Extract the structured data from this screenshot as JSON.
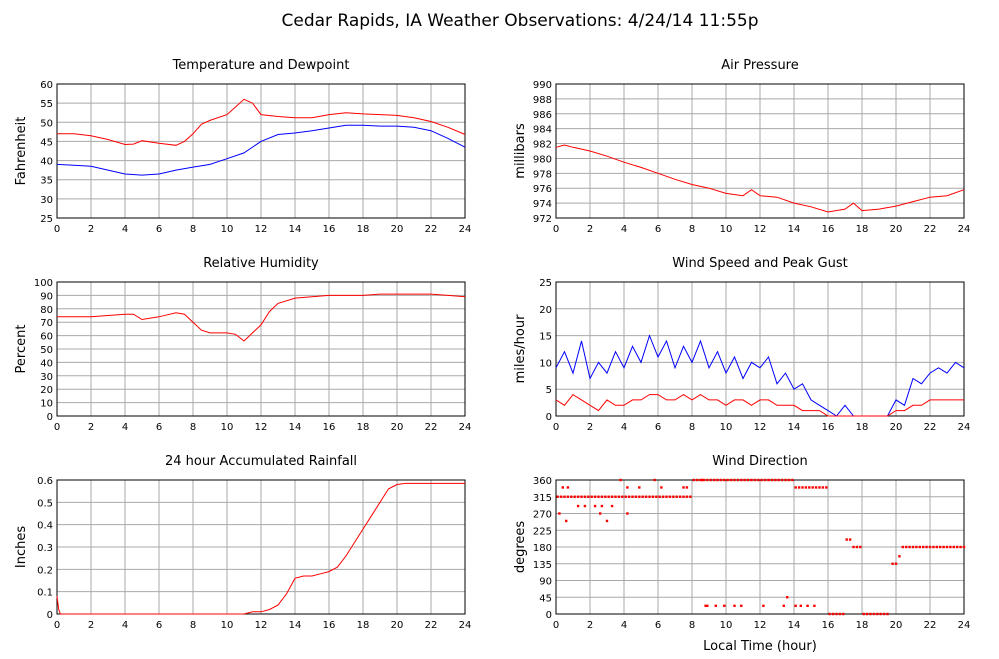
{
  "title": "Cedar Rapids, IA Weather Observations: 4/24/14 11:55p",
  "xlabel_bottom": "Local Time (hour)",
  "colors": {
    "red": "#ff0000",
    "blue": "#0000ff",
    "grid": "#a8a8a8"
  },
  "chart_data": [
    {
      "id": "temp",
      "type": "line",
      "title": "Temperature and Dewpoint",
      "ylabel": "Fahrenheit",
      "xlim": [
        0,
        24
      ],
      "ylim": [
        25,
        60
      ],
      "xticks": [
        0,
        2,
        4,
        6,
        8,
        10,
        12,
        14,
        16,
        18,
        20,
        22,
        24
      ],
      "yticks": [
        25,
        30,
        35,
        40,
        45,
        50,
        55,
        60
      ],
      "grid": true,
      "series": [
        {
          "color": "#ff0000",
          "x": [
            0,
            1,
            2,
            3,
            4,
            4.5,
            5,
            6,
            7,
            7.5,
            8,
            8.5,
            9,
            10,
            10.5,
            11,
            11.5,
            12,
            13,
            14,
            15,
            16,
            17,
            18,
            19,
            20,
            21,
            22,
            23,
            24
          ],
          "y": [
            47,
            47,
            46.5,
            45.5,
            44.2,
            44.3,
            45.2,
            44.5,
            44,
            45,
            47,
            49.5,
            50.5,
            52,
            54,
            56,
            55,
            52,
            51.5,
            51.2,
            51.2,
            52,
            52.5,
            52.2,
            52,
            51.8,
            51.2,
            50.2,
            48.7,
            46.8
          ]
        },
        {
          "color": "#0000ff",
          "x": [
            0,
            1,
            2,
            3,
            4,
            5,
            6,
            7,
            8,
            9,
            10,
            11,
            12,
            13,
            14,
            15,
            16,
            17,
            18,
            19,
            20,
            21,
            22,
            23,
            24
          ],
          "y": [
            39,
            38.8,
            38.5,
            37.5,
            36.5,
            36.2,
            36.5,
            37.5,
            38.3,
            39,
            40.5,
            42,
            45,
            46.8,
            47.2,
            47.8,
            48.5,
            49.2,
            49.2,
            49,
            49,
            48.7,
            47.8,
            45.8,
            43.5
          ]
        }
      ]
    },
    {
      "id": "pres",
      "type": "line",
      "title": "Air Pressure",
      "ylabel": "millibars",
      "xlim": [
        0,
        24
      ],
      "ylim": [
        972,
        990
      ],
      "xticks": [
        0,
        2,
        4,
        6,
        8,
        10,
        12,
        14,
        16,
        18,
        20,
        22,
        24
      ],
      "yticks": [
        972,
        974,
        976,
        978,
        980,
        982,
        984,
        986,
        988,
        990
      ],
      "grid": true,
      "series": [
        {
          "color": "#ff0000",
          "x": [
            0,
            0.5,
            1,
            2,
            3,
            4,
            5,
            6,
            7,
            8,
            9,
            10,
            11,
            11.5,
            12,
            13,
            14,
            15,
            16,
            17,
            17.5,
            18,
            19,
            20,
            21,
            22,
            23,
            24
          ],
          "y": [
            981.5,
            981.8,
            981.5,
            981,
            980.3,
            979.5,
            978.8,
            978,
            977.2,
            976.5,
            976,
            975.3,
            975,
            975.8,
            975,
            974.8,
            974,
            973.5,
            972.8,
            973.2,
            974,
            973,
            973.2,
            973.6,
            974.2,
            974.8,
            975,
            975.8
          ]
        }
      ]
    },
    {
      "id": "rh",
      "type": "line",
      "title": "Relative Humidity",
      "ylabel": "Percent",
      "xlim": [
        0,
        24
      ],
      "ylim": [
        0,
        100
      ],
      "xticks": [
        0,
        2,
        4,
        6,
        8,
        10,
        12,
        14,
        16,
        18,
        20,
        22,
        24
      ],
      "yticks": [
        0,
        10,
        20,
        30,
        40,
        50,
        60,
        70,
        80,
        90,
        100
      ],
      "grid": true,
      "series": [
        {
          "color": "#ff0000",
          "x": [
            0,
            1,
            2,
            3,
            4,
            4.5,
            5,
            6,
            7,
            7.5,
            8,
            8.5,
            9,
            10,
            10.5,
            11,
            11.5,
            12,
            12.5,
            13,
            14,
            15,
            16,
            17,
            18,
            19,
            20,
            21,
            22,
            23,
            24
          ],
          "y": [
            74,
            74,
            74,
            75,
            76,
            76,
            72,
            74,
            77,
            76,
            70,
            64,
            62,
            62,
            61,
            56,
            62,
            68,
            78,
            84,
            88,
            89,
            90,
            90,
            90,
            91,
            91,
            91,
            91,
            90,
            89
          ]
        }
      ]
    },
    {
      "id": "wind",
      "type": "line",
      "title": "Wind Speed and Peak Gust",
      "ylabel": "miles/hour",
      "xlim": [
        0,
        24
      ],
      "ylim": [
        0,
        25
      ],
      "xticks": [
        0,
        2,
        4,
        6,
        8,
        10,
        12,
        14,
        16,
        18,
        20,
        22,
        24
      ],
      "yticks": [
        0,
        5,
        10,
        15,
        20,
        25
      ],
      "grid": true,
      "series": [
        {
          "color": "#0000ff",
          "x": [
            0,
            0.5,
            1,
            1.5,
            2,
            2.5,
            3,
            3.5,
            4,
            4.5,
            5,
            5.5,
            6,
            6.5,
            7,
            7.5,
            8,
            8.5,
            9,
            9.5,
            10,
            10.5,
            11,
            11.5,
            12,
            12.5,
            13,
            13.5,
            14,
            14.5,
            15,
            15.5,
            16,
            16.5,
            17,
            17.5,
            18,
            18.5,
            19,
            19.5,
            20,
            20.5,
            21,
            21.5,
            22,
            22.5,
            23,
            23.5,
            24
          ],
          "y": [
            9,
            12,
            8,
            14,
            7,
            10,
            8,
            12,
            9,
            13,
            10,
            15,
            11,
            14,
            9,
            13,
            10,
            14,
            9,
            12,
            8,
            11,
            7,
            10,
            9,
            11,
            6,
            8,
            5,
            6,
            3,
            2,
            1,
            0,
            2,
            0,
            0,
            0,
            0,
            0,
            3,
            2,
            7,
            6,
            8,
            9,
            8,
            10,
            9
          ]
        },
        {
          "color": "#ff0000",
          "x": [
            0,
            0.5,
            1,
            1.5,
            2,
            2.5,
            3,
            3.5,
            4,
            4.5,
            5,
            5.5,
            6,
            6.5,
            7,
            7.5,
            8,
            8.5,
            9,
            9.5,
            10,
            10.5,
            11,
            11.5,
            12,
            12.5,
            13,
            13.5,
            14,
            14.5,
            15,
            15.5,
            16,
            16.5,
            17,
            17.5,
            18,
            18.5,
            19,
            19.5,
            20,
            20.5,
            21,
            21.5,
            22,
            22.5,
            23,
            23.5,
            24
          ],
          "y": [
            3,
            2,
            4,
            3,
            2,
            1,
            3,
            2,
            2,
            3,
            3,
            4,
            4,
            3,
            3,
            4,
            3,
            4,
            3,
            3,
            2,
            3,
            3,
            2,
            3,
            3,
            2,
            2,
            2,
            1,
            1,
            1,
            0,
            0,
            0,
            0,
            0,
            0,
            0,
            0,
            1,
            1,
            2,
            2,
            3,
            3,
            3,
            3,
            3
          ]
        }
      ]
    },
    {
      "id": "rain",
      "type": "line",
      "title": "24 hour Accumulated Rainfall",
      "ylabel": "Inches",
      "xlim": [
        0,
        24
      ],
      "ylim": [
        0,
        0.6
      ],
      "xticks": [
        0,
        2,
        4,
        6,
        8,
        10,
        12,
        14,
        16,
        18,
        20,
        22,
        24
      ],
      "yticks": [
        0,
        0.1,
        0.2,
        0.3,
        0.4,
        0.5,
        0.6
      ],
      "grid": true,
      "series": [
        {
          "color": "#ff0000",
          "x": [
            0,
            0.1,
            0.2,
            11,
            11.5,
            12,
            12.5,
            13,
            13.5,
            14,
            14.5,
            15,
            15.5,
            16,
            16.5,
            17,
            17.5,
            18,
            18.5,
            19,
            19.5,
            20,
            20.5,
            21,
            22,
            23,
            24
          ],
          "y": [
            0.08,
            0.02,
            0,
            0,
            0.01,
            0.01,
            0.02,
            0.04,
            0.09,
            0.16,
            0.17,
            0.17,
            0.18,
            0.19,
            0.21,
            0.26,
            0.32,
            0.38,
            0.44,
            0.5,
            0.56,
            0.58,
            0.585,
            0.585,
            0.585,
            0.585,
            0.585
          ]
        }
      ]
    },
    {
      "id": "dir",
      "type": "scatter",
      "title": "Wind Direction",
      "ylabel": "degrees",
      "xlabel": "Local Time (hour)",
      "xlim": [
        0,
        24
      ],
      "ylim": [
        0,
        360
      ],
      "xticks": [
        0,
        2,
        4,
        6,
        8,
        10,
        12,
        14,
        16,
        18,
        20,
        22,
        24
      ],
      "yticks": [
        0,
        45,
        90,
        135,
        180,
        225,
        270,
        315,
        360
      ],
      "grid": true,
      "series": [
        {
          "color": "#ff0000",
          "x": [
            0.1,
            0.3,
            0.5,
            0.7,
            0.9,
            1.1,
            1.3,
            1.5,
            1.7,
            1.9,
            2.1,
            2.3,
            2.5,
            2.7,
            2.9,
            3.1,
            3.3,
            3.5,
            3.7,
            3.9,
            4.1,
            4.3,
            4.5,
            4.7,
            4.9,
            5.1,
            5.3,
            5.5,
            5.7,
            5.9,
            6.1,
            6.3,
            6.5,
            6.7,
            6.9,
            7.1,
            7.3,
            7.5,
            7.7,
            7.9,
            8.1,
            8.3,
            8.5,
            8.7,
            8.9,
            9.1,
            9.3,
            9.5,
            9.7,
            9.9,
            10.1,
            10.3,
            10.5,
            10.7,
            10.9,
            11.1,
            11.3,
            11.5,
            11.7,
            11.9,
            12.1,
            12.3,
            12.5,
            12.7,
            12.9,
            13.1,
            13.3,
            13.5,
            13.7,
            13.9,
            14.1,
            14.3,
            14.5,
            14.7,
            14.9,
            15.1,
            15.3,
            15.5,
            15.7,
            15.9,
            16.1,
            16.3,
            16.5,
            16.7,
            16.9,
            17.1,
            17.3,
            17.5,
            17.7,
            17.9,
            18.1,
            18.3,
            18.5,
            18.7,
            18.9,
            19.1,
            19.3,
            19.5,
            19.8,
            20.0,
            20.2,
            20.4,
            20.6,
            20.8,
            21.0,
            21.2,
            21.4,
            21.6,
            21.8,
            22.0,
            22.2,
            22.4,
            22.6,
            22.8,
            23.0,
            23.2,
            23.4,
            23.6,
            23.8,
            24.0,
            0.4,
            0.7,
            1.3,
            1.7,
            2.3,
            2.7,
            3.3,
            3.8,
            4.2,
            4.9,
            5.8,
            6.2,
            7.5,
            7.7,
            8.6,
            8.8,
            8.9,
            9.4,
            9.9,
            10.5,
            10.9,
            12.2,
            13.4,
            13.6,
            14.1,
            14.4,
            14.8,
            15.2,
            0.2,
            0.6,
            2.6,
            3.0,
            4.2
          ],
          "y": [
            315,
            315,
            315,
            315,
            315,
            315,
            315,
            315,
            315,
            315,
            315,
            315,
            315,
            315,
            315,
            315,
            315,
            315,
            315,
            315,
            315,
            315,
            315,
            315,
            315,
            315,
            315,
            315,
            315,
            315,
            315,
            315,
            315,
            315,
            315,
            315,
            315,
            315,
            315,
            315,
            360,
            360,
            360,
            360,
            360,
            360,
            360,
            360,
            360,
            360,
            360,
            360,
            360,
            360,
            360,
            360,
            360,
            360,
            360,
            360,
            360,
            360,
            360,
            360,
            360,
            360,
            360,
            360,
            360,
            360,
            340,
            340,
            340,
            340,
            340,
            340,
            340,
            340,
            340,
            340,
            0,
            0,
            0,
            0,
            0,
            200,
            200,
            180,
            180,
            180,
            0,
            0,
            0,
            0,
            0,
            0,
            0,
            0,
            135,
            135,
            155,
            180,
            180,
            180,
            180,
            180,
            180,
            180,
            180,
            180,
            180,
            180,
            180,
            180,
            180,
            180,
            180,
            180,
            180,
            180,
            340,
            340,
            290,
            290,
            290,
            290,
            290,
            360,
            340,
            340,
            360,
            340,
            340,
            340,
            360,
            22,
            22,
            22,
            22,
            22,
            22,
            22,
            22,
            45,
            22,
            22,
            22,
            22,
            270,
            250,
            270,
            250,
            270
          ]
        }
      ]
    }
  ]
}
